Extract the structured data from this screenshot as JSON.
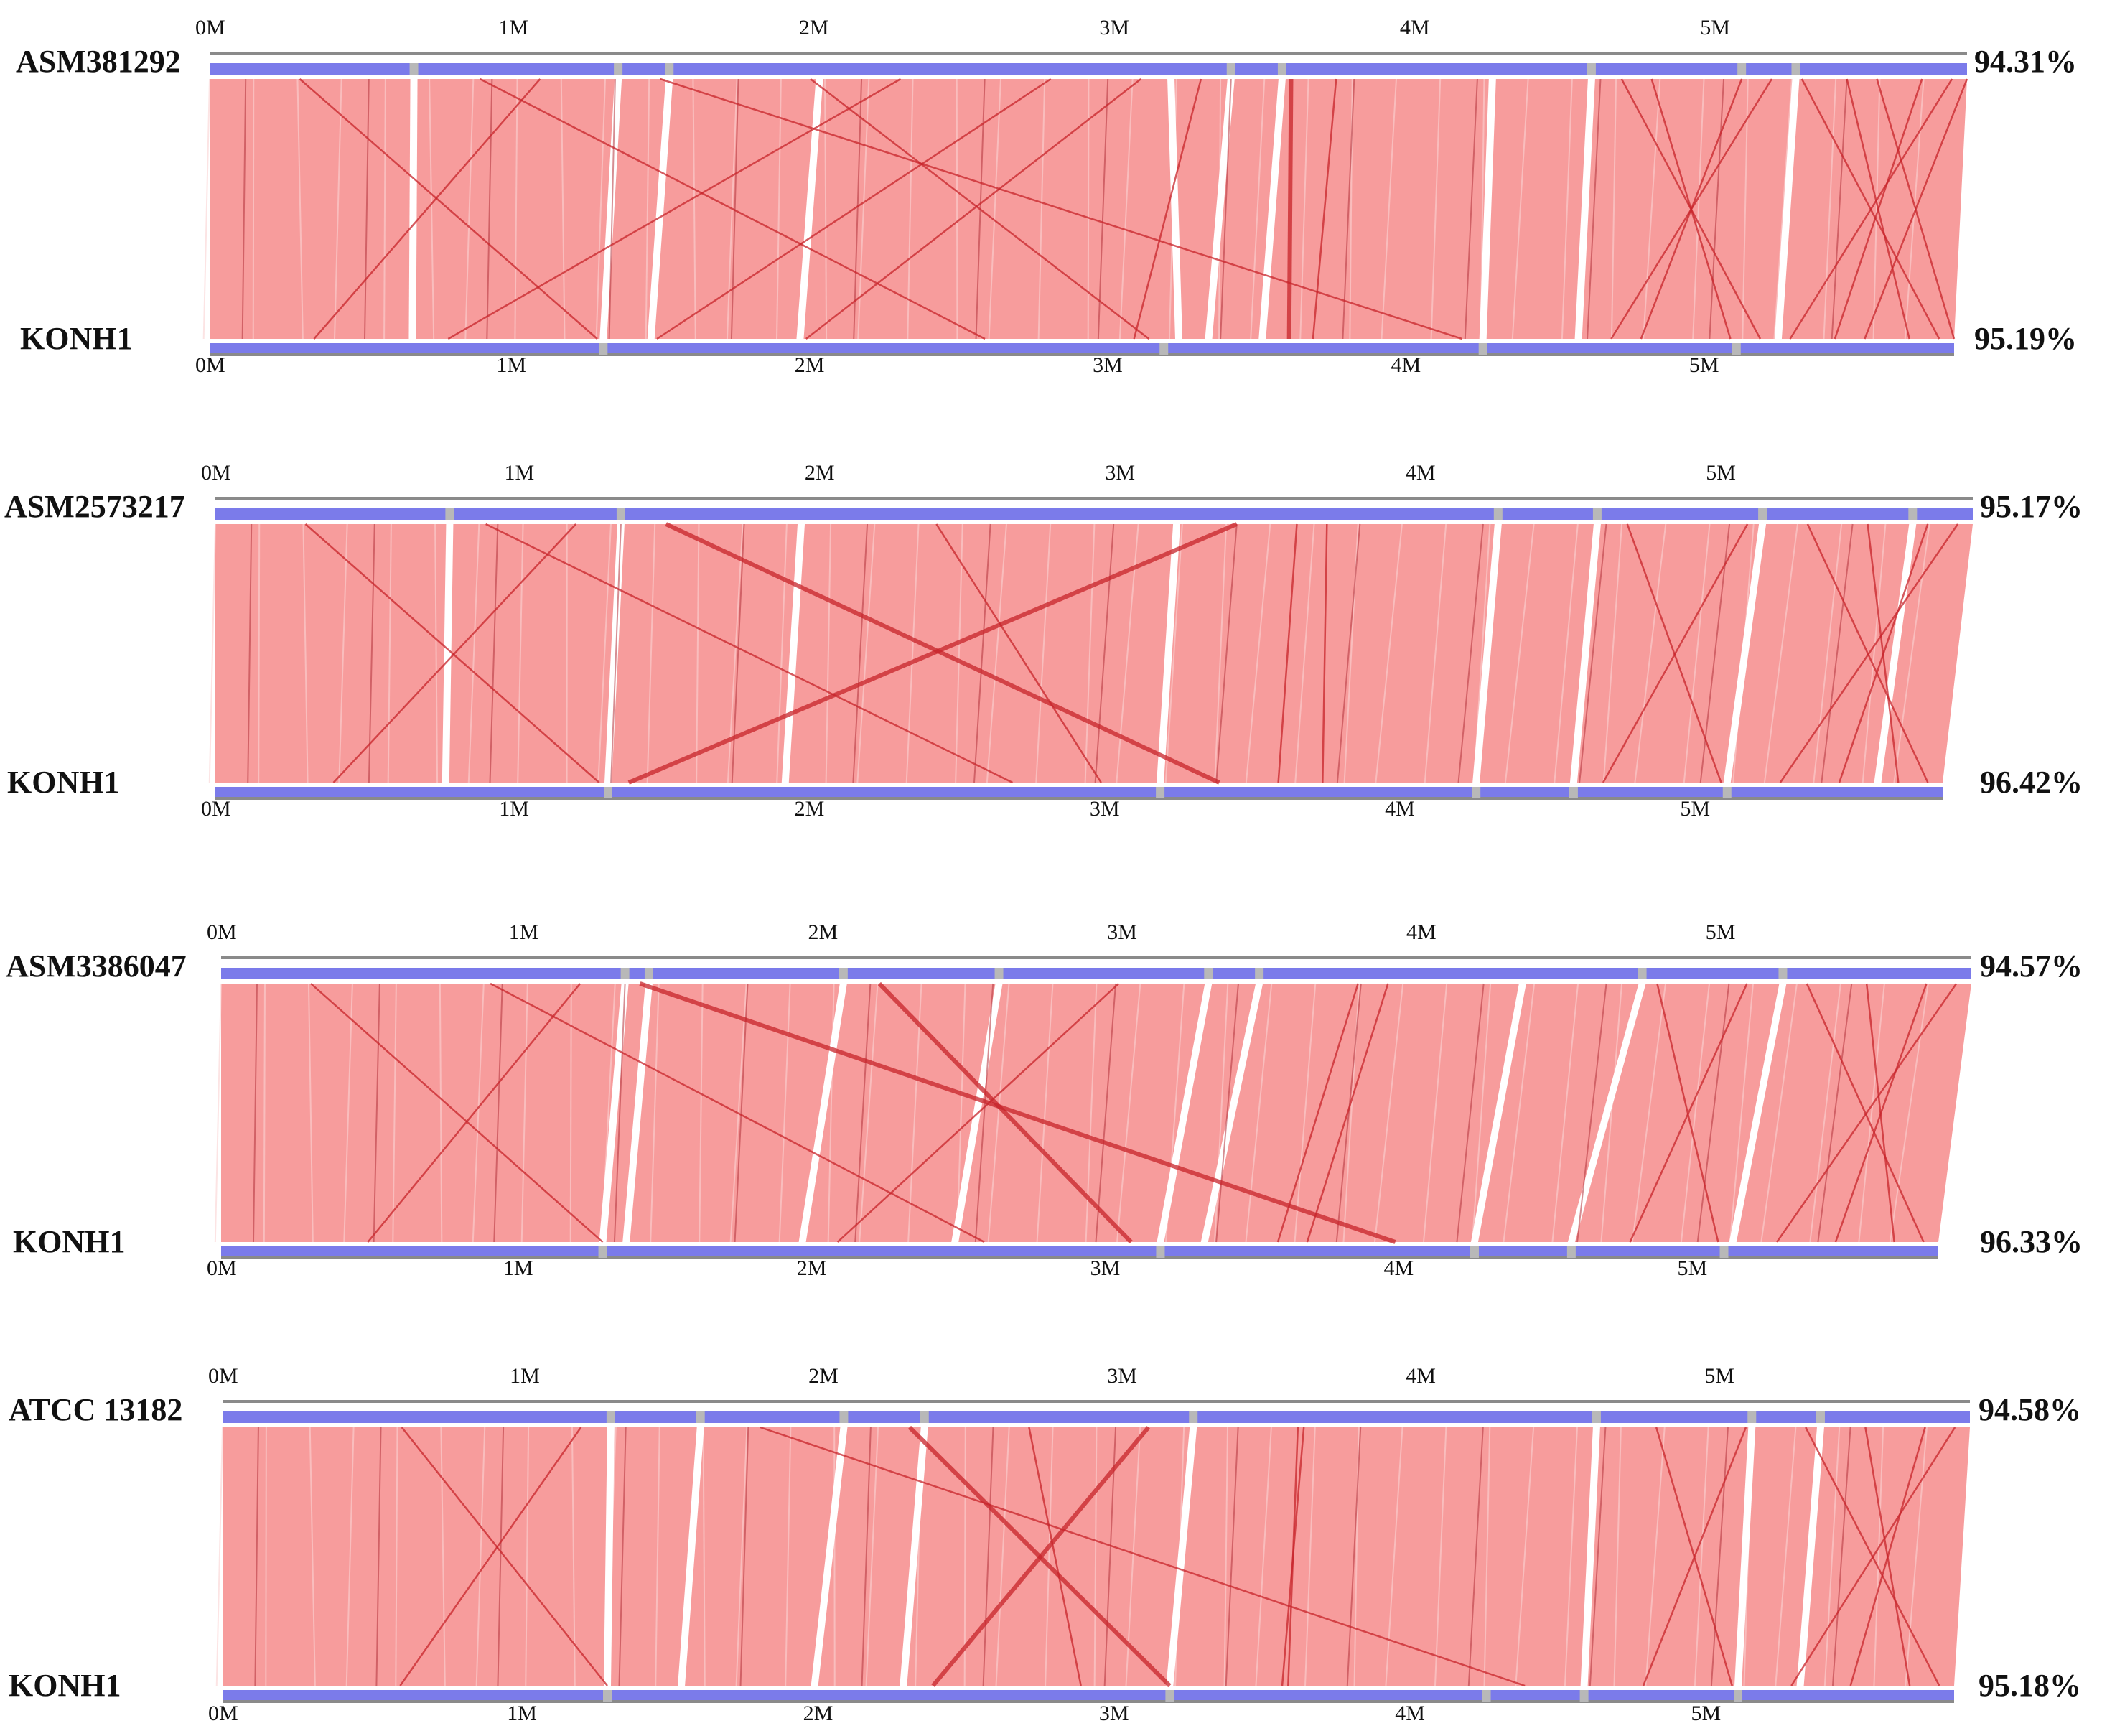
{
  "figure": {
    "tick_labels": [
      "0M",
      "1M",
      "2M",
      "3M",
      "4M",
      "5M"
    ],
    "tick_values_mb": [
      0,
      1,
      2,
      3,
      4,
      5
    ],
    "genome_length_mb": 5.85,
    "colors": {
      "synteny_block": "#f79c9c",
      "crossing_line": "#c8242a",
      "genome_bar": "#7b7bea",
      "gap": "#b8b8b8",
      "axis_line": "#8a8a8a",
      "text": "#111111"
    },
    "panels": [
      {
        "query_name": "ASM381292",
        "query_identity": "94.31%",
        "reference_name": "KONH1",
        "reference_identity": "95.19%",
        "query_gaps_mb": [
          0.68,
          1.36,
          1.53,
          3.4,
          3.57,
          4.6,
          5.1,
          5.28
        ],
        "ref_gaps_mb": [
          1.32,
          3.2,
          4.27,
          5.12
        ],
        "white_wedges_mb": [
          [
            0.68,
            0.68
          ],
          [
            1.36,
            1.32
          ],
          [
            1.53,
            1.48
          ],
          [
            2.03,
            1.98
          ],
          [
            3.2,
            3.25
          ],
          [
            3.4,
            3.35
          ],
          [
            3.57,
            3.53
          ],
          [
            4.27,
            4.27
          ],
          [
            4.6,
            4.59
          ],
          [
            5.28,
            5.26
          ]
        ],
        "crossing_links_mb": [
          [
            1.1,
            0.35
          ],
          [
            0.3,
            1.3
          ],
          [
            2.3,
            0.8
          ],
          [
            0.9,
            2.6
          ],
          [
            3.6,
            3.62
          ],
          [
            3.75,
            3.7
          ],
          [
            3.1,
            2.0
          ],
          [
            2.0,
            3.15
          ],
          [
            4.7,
            5.2
          ],
          [
            5.2,
            4.7
          ],
          [
            4.8,
            5.1
          ],
          [
            5.1,
            4.8
          ],
          [
            5.3,
            5.8
          ],
          [
            5.8,
            5.3
          ],
          [
            5.45,
            5.7
          ],
          [
            5.7,
            5.45
          ],
          [
            5.55,
            5.85
          ],
          [
            5.85,
            5.55
          ],
          [
            1.5,
            4.2
          ],
          [
            2.8,
            1.5
          ],
          [
            3.3,
            3.1
          ]
        ]
      },
      {
        "query_name": "ASM2573217",
        "query_identity": "95.17%",
        "reference_name": "KONH1",
        "reference_identity": "96.42%",
        "query_gaps_mb": [
          0.78,
          1.35,
          4.27,
          4.6,
          5.15,
          5.65
        ],
        "ref_gaps_mb": [
          1.33,
          3.2,
          4.27,
          4.6,
          5.12
        ],
        "white_wedges_mb": [
          [
            0.78,
            0.78
          ],
          [
            1.35,
            1.33
          ],
          [
            1.95,
            1.93
          ],
          [
            3.2,
            3.2
          ],
          [
            4.27,
            4.27
          ],
          [
            4.6,
            4.6
          ],
          [
            5.15,
            5.12
          ],
          [
            5.65,
            5.63
          ]
        ],
        "crossing_links_mb": [
          [
            0.3,
            1.3
          ],
          [
            1.2,
            0.4
          ],
          [
            3.6,
            3.6
          ],
          [
            3.7,
            3.75
          ],
          [
            1.5,
            3.4
          ],
          [
            3.4,
            1.4
          ],
          [
            2.4,
            3.0
          ],
          [
            4.7,
            5.1
          ],
          [
            5.1,
            4.7
          ],
          [
            5.3,
            5.8
          ],
          [
            5.8,
            5.3
          ],
          [
            5.5,
            5.7
          ],
          [
            5.7,
            5.5
          ],
          [
            0.9,
            2.7
          ]
        ]
      },
      {
        "query_name": "ASM3386047",
        "query_identity": "94.57%",
        "reference_name": "KONH1",
        "reference_identity": "96.33%",
        "query_gaps_mb": [
          1.35,
          1.43,
          2.08,
          2.6,
          3.3,
          3.47,
          4.75,
          5.22
        ],
        "ref_gaps_mb": [
          1.3,
          3.2,
          4.27,
          4.6,
          5.12
        ],
        "white_wedges_mb": [
          [
            1.35,
            1.3
          ],
          [
            1.43,
            1.38
          ],
          [
            2.08,
            1.98
          ],
          [
            2.6,
            2.5
          ],
          [
            3.3,
            3.2
          ],
          [
            3.47,
            3.35
          ],
          [
            4.35,
            4.27
          ],
          [
            4.75,
            4.6
          ],
          [
            5.22,
            5.15
          ]
        ],
        "crossing_links_mb": [
          [
            0.3,
            1.3
          ],
          [
            1.2,
            0.5
          ],
          [
            3.8,
            3.6
          ],
          [
            3.9,
            3.7
          ],
          [
            1.4,
            4.0
          ],
          [
            2.2,
            3.1
          ],
          [
            3.0,
            2.1
          ],
          [
            4.8,
            5.1
          ],
          [
            5.1,
            4.8
          ],
          [
            5.3,
            5.8
          ],
          [
            5.8,
            5.3
          ],
          [
            5.5,
            5.7
          ],
          [
            5.7,
            5.5
          ],
          [
            0.9,
            2.6
          ]
        ]
      },
      {
        "query_name": "ATCC 13182",
        "query_identity": "94.58%",
        "reference_name": "KONH1",
        "reference_identity": "95.18%",
        "query_gaps_mb": [
          1.3,
          1.6,
          2.08,
          2.35,
          3.25,
          4.6,
          5.12,
          5.35
        ],
        "ref_gaps_mb": [
          1.3,
          3.2,
          4.27,
          4.6,
          5.12
        ],
        "white_wedges_mb": [
          [
            1.3,
            1.3
          ],
          [
            1.6,
            1.55
          ],
          [
            2.08,
            2.0
          ],
          [
            2.35,
            2.3
          ],
          [
            3.25,
            3.2
          ],
          [
            4.6,
            4.6
          ],
          [
            5.12,
            5.12
          ],
          [
            5.35,
            5.33
          ]
        ],
        "crossing_links_mb": [
          [
            0.6,
            1.3
          ],
          [
            1.2,
            0.6
          ],
          [
            3.6,
            3.6
          ],
          [
            3.62,
            3.58
          ],
          [
            2.3,
            3.2
          ],
          [
            3.1,
            2.4
          ],
          [
            2.7,
            2.9
          ],
          [
            1.8,
            4.4
          ],
          [
            4.8,
            5.1
          ],
          [
            5.1,
            4.8
          ],
          [
            5.3,
            5.8
          ],
          [
            5.8,
            5.3
          ],
          [
            5.5,
            5.7
          ],
          [
            5.7,
            5.5
          ]
        ]
      }
    ]
  }
}
